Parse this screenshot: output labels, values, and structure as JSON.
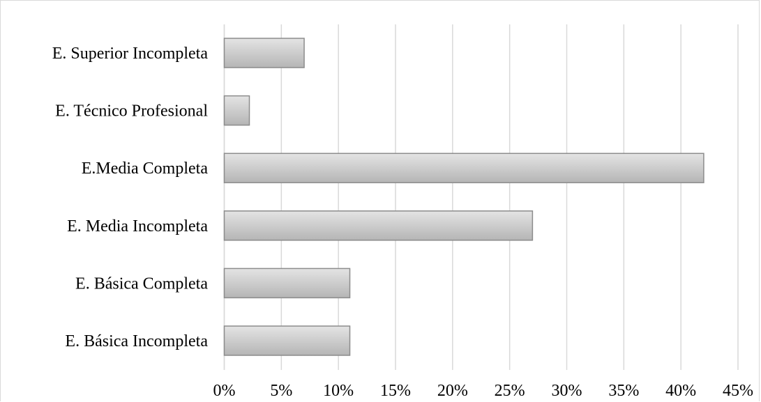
{
  "chart_data": {
    "type": "bar",
    "orientation": "horizontal",
    "categories": [
      "E. Superior Incompleta",
      "E. Técnico Profesional",
      "E.Media Completa",
      "E. Media Incompleta",
      "E. Básica Completa",
      "E. Básica Incompleta"
    ],
    "values": [
      7,
      2.2,
      42,
      27,
      11,
      11
    ],
    "value_unit": "%",
    "xlim": [
      0,
      45
    ],
    "x_ticks": [
      "0%",
      "5%",
      "10%",
      "15%",
      "20%",
      "25%",
      "30%",
      "35%",
      "40%",
      "45%"
    ],
    "title": "",
    "xlabel": "",
    "ylabel": "",
    "grid": "vertical",
    "legend": "none",
    "colors": {
      "bar_fill_top": "#e4e4e4",
      "bar_fill_bottom": "#b5b5b5",
      "bar_stroke": "#8c8c8c",
      "grid": "#d9d9d9"
    }
  }
}
